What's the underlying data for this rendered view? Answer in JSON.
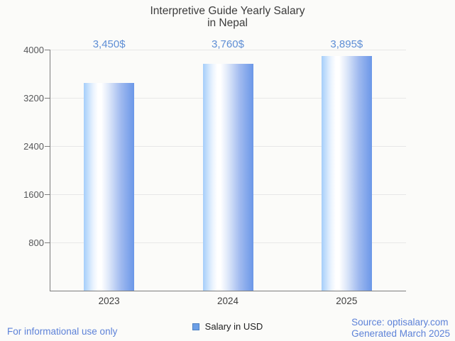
{
  "title": {
    "line1": "Interpretive Guide Yearly Salary",
    "line2": "in Nepal"
  },
  "chart_data": {
    "type": "bar",
    "title": "Interpretive Guide Yearly Salary in Nepal",
    "categories": [
      "2023",
      "2024",
      "2025"
    ],
    "series": [
      {
        "name": "Salary in USD",
        "values": [
          3450,
          3760,
          3895
        ],
        "data_labels": [
          "3,450$",
          "3,760$",
          "3,895$"
        ]
      }
    ],
    "xlabel": "",
    "ylabel": "",
    "ylim": [
      0,
      4000
    ],
    "y_ticks": [
      4000,
      3200,
      2400,
      1600,
      800
    ],
    "grid": true,
    "legend_position": "bottom"
  },
  "legend": {
    "label": "Salary in USD"
  },
  "footer": {
    "disclaimer": "For informational use only",
    "source": "Source: optisalary.com",
    "generated": "Generated March 2025"
  },
  "colors": {
    "background": "#fbfbf9",
    "title_text": "#3c3c3c",
    "axis_text": "#57585a",
    "category_text": "#3f3f3f",
    "gridline": "#e7e7e7",
    "axis_line": "#7d7d7d",
    "data_label_blue": "#5e8ed5",
    "link_blue": "#5d82d8",
    "bar_left": "#a5cefa",
    "bar_center": "#ffffff",
    "bar_right": "#6b97e8",
    "legend_fill": "#6c9fe6",
    "legend_border": "#4b7fc1"
  }
}
